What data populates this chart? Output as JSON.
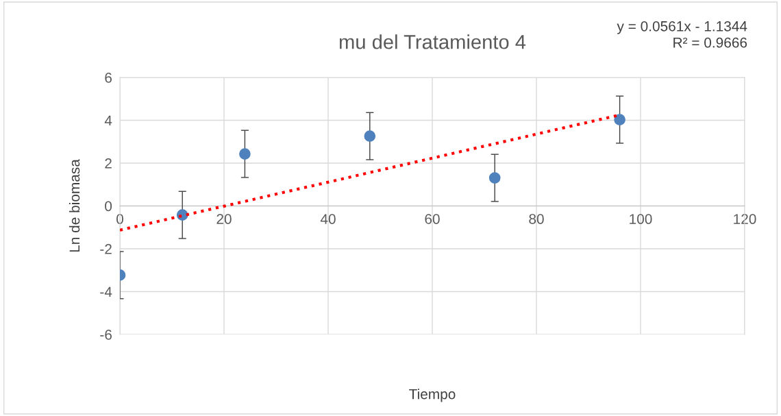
{
  "chart_data": {
    "type": "scatter",
    "title": "mu del Tratamiento 4",
    "xlabel": "Tiempo",
    "ylabel": "Ln de biomasa",
    "xlim": [
      0,
      120
    ],
    "xticks": [
      0,
      20,
      40,
      60,
      80,
      100,
      120
    ],
    "ylim": [
      -6,
      6
    ],
    "yticks": [
      -6,
      -4,
      -2,
      0,
      2,
      4,
      6
    ],
    "grid": true,
    "legend": false,
    "series": [
      {
        "marker": "circle",
        "color": "#4f81bd",
        "x": [
          0,
          12,
          24,
          48,
          72,
          96
        ],
        "values": [
          -3.23,
          -0.42,
          2.43,
          3.26,
          1.31,
          4.03
        ],
        "errors": [
          1.1,
          1.1,
          1.1,
          1.1,
          1.1,
          1.1
        ]
      },
      {
        "type": "line",
        "color": "#ff0000",
        "line_style": "dotted",
        "x": [
          0,
          96
        ],
        "values": [
          -1.13,
          4.25
        ]
      }
    ],
    "annotations": [
      "y = 0.0561x - 1.1344\nR² = 0.9666"
    ]
  }
}
